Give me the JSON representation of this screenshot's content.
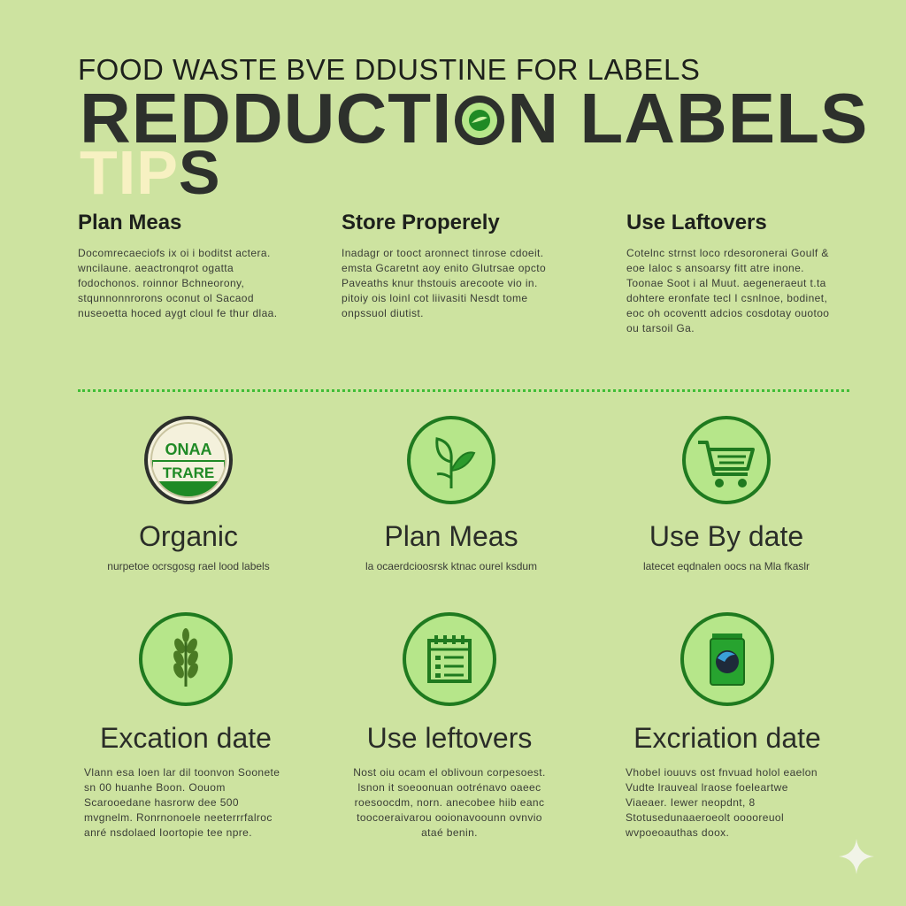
{
  "header": {
    "line1": "FOOD WASTE BVE DDUSTINE FOR LABELS",
    "line2_pre": "REDDUCTI",
    "line2_post": "N LABELS",
    "line3_a": "TIP",
    "line3_b": "S"
  },
  "tips": [
    {
      "title": "Plan Meas",
      "text": "Docomrecaeciofs ix oi i boditst actera. wncilaune. aeactronqrot ogatta fodochonos. roinnor Bchneorony, stqunnonnrorons oconut ol Sacaod nuseoetta hoced aygt cloul fe thur dlaa."
    },
    {
      "title": "Store Properely",
      "text": "Inadagr or tooct aronnect tinrose cdoeit. emsta Gcaretnt aoy enito Glutrsae opcto Paveaths knur thstouis arecoote vio in. pitoiy ois loinl cot liivasiti Nesdt tome onpssuol diutist."
    },
    {
      "title": "Use Laftovers",
      "text": "Cotelnc strnst loco rdesoronerai Goulf & eoe Ialoc s ansoarsy fitt atre inone. Toonae Soot i al Muut. aegeneraeut t.ta dohtere eronfate tecl I csnlnoe, bodinet, eoc oh ocoventt adcios cosdotay ouotoo ou tarsoil Ga."
    }
  ],
  "cards": [
    {
      "icon": "organic-badge-icon",
      "badge_top": "ONAA",
      "badge_bottom": "TRARE",
      "title": "Organic",
      "sub": "nurpetoe ocrsgosg rael lood labels"
    },
    {
      "icon": "leaf-icon",
      "title": "Plan Meas",
      "sub": "la ocaerdcioosrsk ktnac ourel ksdum"
    },
    {
      "icon": "cart-icon",
      "title": "Use By date",
      "sub": "latecet eqdnalen oocs na Mla fkaslr"
    },
    {
      "icon": "wheat-icon",
      "title": "Excation date",
      "desc": "Vlann esa Ioen lar dil toonvon Soonete sn 00 huanhe Boon. Oouom Scarooedane hasrorw dee 500 mvgnelm. Ronrnonoele neeterrrfalroc anré nsdolaed Ioortopie tee npre."
    },
    {
      "icon": "calendar-icon",
      "title": "Use leftovers",
      "desc": "Nost oiu ocam el oblivoun corpesoest. lsnon it soeoonuan ootrénavo oaeec roesoocdm, norn. anecobee hiib eanc toocoeraivarou ooionavoounn ovnvio ataé benin."
    },
    {
      "icon": "green-container-icon",
      "title": "Excriation date",
      "desc": "Vhobel iouuvs ost fnvuad holol eaelon Vudte lrauveal lraose foeleartwe Viaeaer. Iewer neopdnt, 8 Stotusedunaaeroeolt ooooreuol wvpoeoauthas doox."
    }
  ],
  "colors": {
    "background": "#cde3a0",
    "accent_green": "#1f7a1f",
    "circle_fill": "#b6e68a",
    "divider": "#3fbd36",
    "tips_highlight": "#f7f1c2"
  }
}
